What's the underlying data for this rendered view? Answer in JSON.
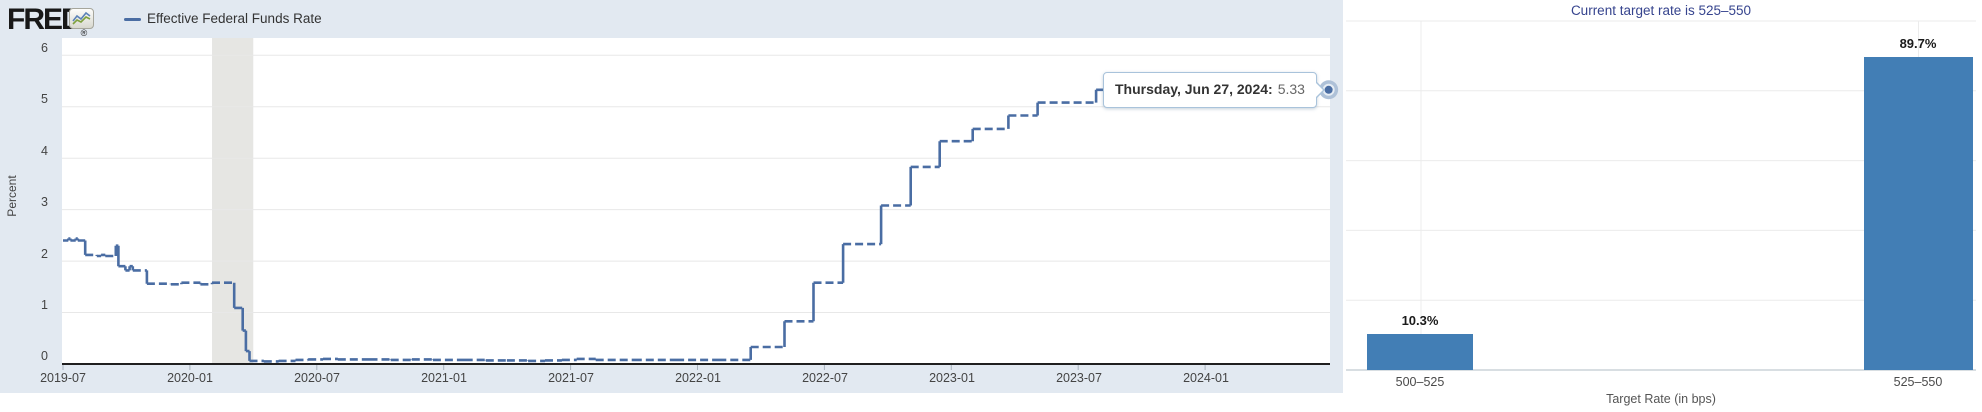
{
  "left_chart": {
    "brand": "FRED",
    "registered_mark": "®",
    "tooltip": {
      "date_label": "Thursday, Jun 27, 2024:",
      "value": "5.33"
    }
  },
  "chart_data": [
    {
      "type": "line",
      "series_name": "Effective Federal Funds Rate",
      "ylabel": "Percent",
      "ylim": [
        0,
        6
      ],
      "x_unit": "months_since_2019-07",
      "x_tick_labels": [
        "2019-07",
        "2020-01",
        "2020-07",
        "2021-01",
        "2021-07",
        "2022-01",
        "2022-07",
        "2023-01",
        "2023-07",
        "2024-01"
      ],
      "y_tick_labels": [
        "0",
        "1",
        "2",
        "3",
        "4",
        "5",
        "6"
      ],
      "line_color": "#4a6da3",
      "line_style": "dashed",
      "interpolation": "step-after",
      "recession_band_months": [
        7.05,
        9.0
      ],
      "points": [
        [
          0,
          2.4
        ],
        [
          0.25,
          2.44
        ],
        [
          0.35,
          2.4
        ],
        [
          0.6,
          2.44
        ],
        [
          0.7,
          2.4
        ],
        [
          1.05,
          2.12
        ],
        [
          1.6,
          2.1
        ],
        [
          1.8,
          2.12
        ],
        [
          2.0,
          2.1
        ],
        [
          2.5,
          2.3
        ],
        [
          2.62,
          1.9
        ],
        [
          2.95,
          1.82
        ],
        [
          3.15,
          1.9
        ],
        [
          3.3,
          1.82
        ],
        [
          3.97,
          1.56
        ],
        [
          5.1,
          1.55
        ],
        [
          5.6,
          1.58
        ],
        [
          6.5,
          1.55
        ],
        [
          7.05,
          1.58
        ],
        [
          8.1,
          1.09
        ],
        [
          8.5,
          0.65
        ],
        [
          8.65,
          0.25
        ],
        [
          8.82,
          0.06
        ],
        [
          9.5,
          0.05
        ],
        [
          10.2,
          0.06
        ],
        [
          11,
          0.08
        ],
        [
          11.6,
          0.09
        ],
        [
          12.3,
          0.1
        ],
        [
          13,
          0.09
        ],
        [
          14.5,
          0.09
        ],
        [
          15.5,
          0.08
        ],
        [
          16.5,
          0.09
        ],
        [
          17.5,
          0.08
        ],
        [
          19,
          0.08
        ],
        [
          20,
          0.07
        ],
        [
          21,
          0.07
        ],
        [
          22,
          0.06
        ],
        [
          22.8,
          0.07
        ],
        [
          23.6,
          0.08
        ],
        [
          24.3,
          0.1
        ],
        [
          25.2,
          0.08
        ],
        [
          27,
          0.08
        ],
        [
          29,
          0.08
        ],
        [
          31,
          0.08
        ],
        [
          32.53,
          0.33
        ],
        [
          34.13,
          0.83
        ],
        [
          35.5,
          1.58
        ],
        [
          36.9,
          2.33
        ],
        [
          38.7,
          3.08
        ],
        [
          40.1,
          3.83
        ],
        [
          41.47,
          4.33
        ],
        [
          43.03,
          4.57
        ],
        [
          44.72,
          4.83
        ],
        [
          46.1,
          5.08
        ],
        [
          48.87,
          5.33
        ],
        [
          59.87,
          5.33
        ]
      ],
      "end_marker": {
        "t": 59.87,
        "value": 5.33
      }
    },
    {
      "type": "bar",
      "title": "Current target rate is 525–550",
      "categories": [
        "500–525",
        "525–550"
      ],
      "values": [
        10.3,
        89.7
      ],
      "value_labels": [
        "10.3%",
        "89.7%"
      ],
      "xlabel": "Target Rate (in bps)",
      "ylim": [
        0,
        100
      ],
      "gridline_step": 20,
      "bar_color": "#427eb5"
    }
  ]
}
